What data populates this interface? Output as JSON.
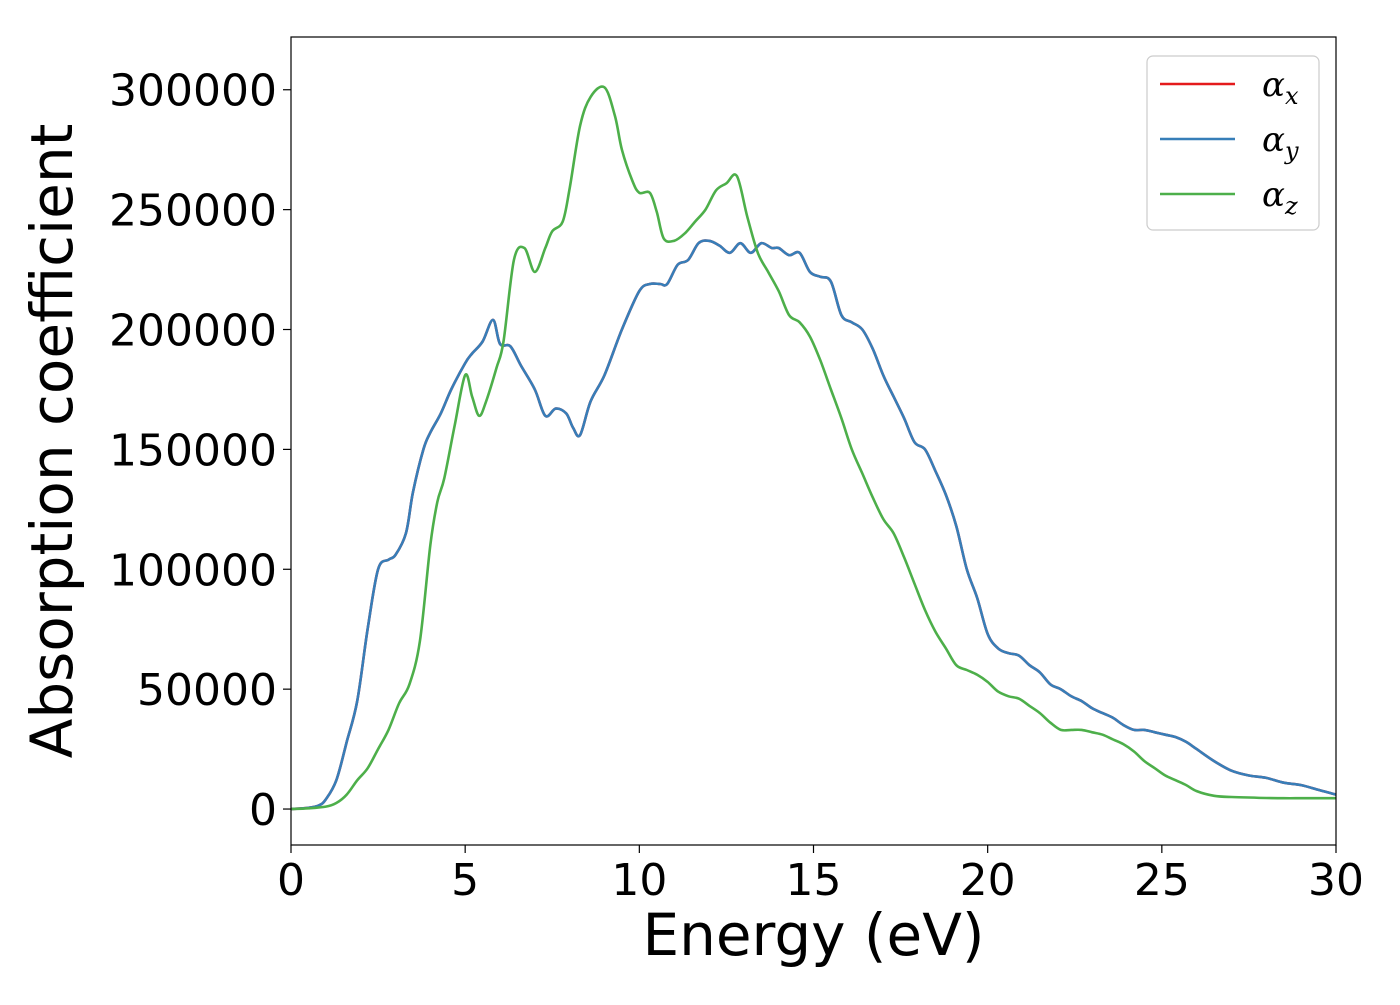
{
  "chart_data": {
    "type": "line",
    "title": "",
    "xlabel": "Energy (eV)",
    "ylabel": "Absorption coefficient",
    "xlim": [
      0,
      30
    ],
    "ylim": [
      -15000,
      322000
    ],
    "xticks": [
      0,
      5,
      10,
      15,
      20,
      25,
      30
    ],
    "xtick_labels": [
      "0",
      "5",
      "10",
      "15",
      "20",
      "25",
      "30"
    ],
    "yticks": [
      0,
      50000,
      100000,
      150000,
      200000,
      250000,
      300000
    ],
    "ytick_labels": [
      "0",
      "50000",
      "100000",
      "150000",
      "200000",
      "250000",
      "300000"
    ],
    "grid": false,
    "legend_position": "top-right",
    "series": [
      {
        "name": "αx",
        "legend_base": "α",
        "legend_sub": "x",
        "color": "#e41a1c",
        "x": [
          0,
          0.5,
          0.8,
          1.0,
          1.3,
          1.6,
          1.9,
          2.2,
          2.5,
          2.8,
          3.0,
          3.3,
          3.5,
          3.8,
          4.0,
          4.3,
          4.6,
          5.0,
          5.2,
          5.5,
          5.8,
          6.0,
          6.3,
          6.6,
          7.0,
          7.3,
          7.6,
          7.9,
          8.1,
          8.3,
          8.6,
          9.0,
          9.5,
          10.0,
          10.3,
          10.6,
          10.8,
          11.1,
          11.4,
          11.7,
          12.0,
          12.3,
          12.6,
          12.9,
          13.2,
          13.5,
          13.8,
          14.0,
          14.3,
          14.6,
          14.9,
          15.2,
          15.5,
          15.8,
          16.1,
          16.4,
          16.7,
          17.0,
          17.3,
          17.6,
          17.9,
          18.2,
          18.5,
          18.8,
          19.1,
          19.4,
          19.7,
          20.0,
          20.3,
          20.6,
          20.9,
          21.2,
          21.5,
          21.8,
          22.1,
          22.4,
          22.7,
          23.0,
          23.3,
          23.6,
          23.9,
          24.2,
          24.5,
          24.8,
          25.1,
          25.4,
          25.7,
          26.0,
          26.5,
          27.0,
          27.5,
          28.0,
          28.5,
          29.0,
          29.5,
          30.0
        ],
        "y": [
          0,
          500,
          1500,
          4000,
          12000,
          28000,
          45000,
          75000,
          100000,
          104000,
          106000,
          115000,
          132000,
          150000,
          157000,
          165000,
          175000,
          186000,
          190000,
          195000,
          204000,
          194000,
          193000,
          185000,
          175000,
          164000,
          167000,
          165000,
          159000,
          156000,
          170000,
          181000,
          200000,
          216000,
          219000,
          219000,
          219000,
          227000,
          229000,
          236000,
          237000,
          235000,
          232000,
          236000,
          232000,
          236000,
          234000,
          234000,
          231000,
          232000,
          224000,
          222000,
          220000,
          206000,
          203000,
          200000,
          192000,
          181000,
          172000,
          163000,
          153000,
          150000,
          141000,
          131000,
          118000,
          100000,
          88000,
          73000,
          67000,
          65000,
          64000,
          60000,
          57000,
          52000,
          50000,
          47000,
          45000,
          42000,
          40000,
          38000,
          35000,
          33000,
          33000,
          32000,
          31000,
          30000,
          28000,
          25000,
          20000,
          16000,
          14000,
          13000,
          11000,
          10000,
          8000,
          6000
        ]
      },
      {
        "name": "αy",
        "legend_base": "α",
        "legend_sub": "y",
        "color": "#377eb8",
        "x": [
          0,
          0.5,
          0.8,
          1.0,
          1.3,
          1.6,
          1.9,
          2.2,
          2.5,
          2.8,
          3.0,
          3.3,
          3.5,
          3.8,
          4.0,
          4.3,
          4.6,
          5.0,
          5.2,
          5.5,
          5.8,
          6.0,
          6.3,
          6.6,
          7.0,
          7.3,
          7.6,
          7.9,
          8.1,
          8.3,
          8.6,
          9.0,
          9.5,
          10.0,
          10.3,
          10.6,
          10.8,
          11.1,
          11.4,
          11.7,
          12.0,
          12.3,
          12.6,
          12.9,
          13.2,
          13.5,
          13.8,
          14.0,
          14.3,
          14.6,
          14.9,
          15.2,
          15.5,
          15.8,
          16.1,
          16.4,
          16.7,
          17.0,
          17.3,
          17.6,
          17.9,
          18.2,
          18.5,
          18.8,
          19.1,
          19.4,
          19.7,
          20.0,
          20.3,
          20.6,
          20.9,
          21.2,
          21.5,
          21.8,
          22.1,
          22.4,
          22.7,
          23.0,
          23.3,
          23.6,
          23.9,
          24.2,
          24.5,
          24.8,
          25.1,
          25.4,
          25.7,
          26.0,
          26.5,
          27.0,
          27.5,
          28.0,
          28.5,
          29.0,
          29.5,
          30.0
        ],
        "y": [
          0,
          500,
          1500,
          4000,
          12000,
          28000,
          45000,
          75000,
          100000,
          104000,
          106000,
          115000,
          132000,
          150000,
          157000,
          165000,
          175000,
          186000,
          190000,
          195000,
          204000,
          194000,
          193000,
          185000,
          175000,
          164000,
          167000,
          165000,
          159000,
          156000,
          170000,
          181000,
          200000,
          216000,
          219000,
          219000,
          219000,
          227000,
          229000,
          236000,
          237000,
          235000,
          232000,
          236000,
          232000,
          236000,
          234000,
          234000,
          231000,
          232000,
          224000,
          222000,
          220000,
          206000,
          203000,
          200000,
          192000,
          181000,
          172000,
          163000,
          153000,
          150000,
          141000,
          131000,
          118000,
          100000,
          88000,
          73000,
          67000,
          65000,
          64000,
          60000,
          57000,
          52000,
          50000,
          47000,
          45000,
          42000,
          40000,
          38000,
          35000,
          33000,
          33000,
          32000,
          31000,
          30000,
          28000,
          25000,
          20000,
          16000,
          14000,
          13000,
          11000,
          10000,
          8000,
          6000
        ]
      },
      {
        "name": "αz",
        "legend_base": "α",
        "legend_sub": "z",
        "color": "#4daf4a",
        "x": [
          0,
          0.5,
          1.0,
          1.3,
          1.6,
          1.9,
          2.2,
          2.5,
          2.8,
          3.1,
          3.4,
          3.7,
          4.0,
          4.2,
          4.4,
          4.7,
          5.0,
          5.2,
          5.4,
          5.6,
          5.9,
          6.1,
          6.4,
          6.7,
          7.0,
          7.3,
          7.5,
          7.8,
          8.0,
          8.3,
          8.6,
          9.0,
          9.3,
          9.5,
          9.8,
          10.0,
          10.3,
          10.5,
          10.7,
          11.0,
          11.3,
          11.6,
          11.9,
          12.2,
          12.5,
          12.8,
          13.1,
          13.4,
          13.7,
          14.0,
          14.3,
          14.6,
          14.9,
          15.2,
          15.5,
          15.8,
          16.1,
          16.4,
          16.7,
          17.0,
          17.3,
          17.6,
          17.9,
          18.2,
          18.5,
          18.8,
          19.1,
          19.4,
          19.7,
          20.0,
          20.3,
          20.6,
          20.9,
          21.2,
          21.5,
          21.8,
          22.1,
          22.4,
          22.7,
          23.0,
          23.3,
          23.6,
          23.9,
          24.2,
          24.5,
          24.8,
          25.1,
          25.4,
          25.7,
          26.0,
          26.5,
          27.0,
          27.5,
          28.0,
          28.5,
          29.0,
          29.5,
          30.0
        ],
        "y": [
          0,
          300,
          1000,
          2500,
          6000,
          12000,
          17000,
          25000,
          33000,
          44000,
          52000,
          70000,
          110000,
          128000,
          138000,
          160000,
          181000,
          172000,
          164000,
          170000,
          184000,
          195000,
          229000,
          234000,
          224000,
          234000,
          241000,
          245000,
          259000,
          285000,
          297000,
          301000,
          289000,
          275000,
          262000,
          257000,
          257000,
          249000,
          238000,
          237000,
          240000,
          245000,
          250000,
          258000,
          261000,
          264000,
          247000,
          232000,
          224000,
          216000,
          206000,
          203000,
          197000,
          187000,
          175000,
          163000,
          150000,
          140000,
          130000,
          121000,
          115000,
          105000,
          94000,
          83000,
          74000,
          67000,
          60000,
          58000,
          56000,
          53000,
          49000,
          47000,
          46000,
          43000,
          40000,
          36000,
          33000,
          33000,
          33000,
          32000,
          31000,
          29000,
          27000,
          24000,
          20000,
          17000,
          14000,
          12000,
          10000,
          7500,
          5500,
          5000,
          4800,
          4600,
          4500,
          4500,
          4500,
          4500
        ]
      }
    ]
  }
}
